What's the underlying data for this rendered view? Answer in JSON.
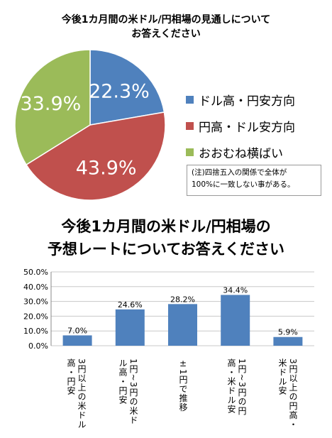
{
  "pie_title_line1": "今後1カ月間の米ドル/円相場の見通しについて",
  "pie_title_line2": "お答えください",
  "legend": [
    "ドル高・円安方向",
    "円高・ドル安方向",
    "おおむね横ばい"
  ],
  "note_line1": "(注)四捨五入の関係で全体が",
  "note_line2": "100%に一致しない事がある。",
  "bar_title_line1": "今後1カ月間の米ドル/円相場の",
  "bar_title_line2": "予想レートについてお答えください",
  "chart_data": [
    {
      "type": "pie",
      "labels": [
        "ドル高・円安方向",
        "円高・ドル安方向",
        "おおむね横ばい"
      ],
      "values": [
        22.3,
        43.9,
        33.9
      ],
      "value_labels": [
        "22.3%",
        "43.9%",
        "33.9%"
      ],
      "colors": [
        "#4f81bd",
        "#c0504d",
        "#9bbb59"
      ]
    },
    {
      "type": "bar",
      "categories": [
        "3円以上の米ドル高・円安",
        "1円~3円の米ドル高・円安",
        "±1円で推移",
        "1円~3円の円高・米ドル安",
        "3円以上の円高・米ドル安"
      ],
      "values": [
        7.0,
        24.6,
        28.2,
        34.4,
        5.9
      ],
      "value_labels": [
        "7.0%",
        "24.6%",
        "28.2%",
        "34.4%",
        "5.9%"
      ],
      "ytick_labels": [
        "0.0%",
        "10.0%",
        "20.0%",
        "30.0%",
        "40.0%",
        "50.0%"
      ],
      "ylim": [
        0,
        50
      ],
      "grid": true,
      "bar_color": "#4f81bd"
    }
  ]
}
